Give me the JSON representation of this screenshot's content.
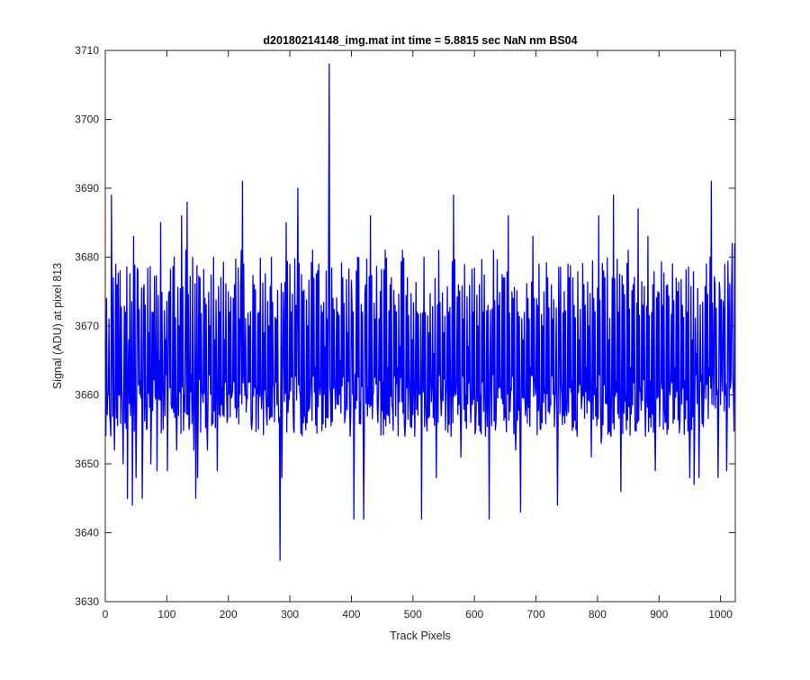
{
  "chart_data": {
    "type": "line",
    "title": "d20180214148_img.mat int time = 5.8815 sec  NaN nm BS04",
    "xlabel": "Track Pixels",
    "ylabel": "Signal (ADU) at pixel 813",
    "xlim": [
      0,
      1024
    ],
    "ylim": [
      3630,
      3710
    ],
    "xticks": [
      0,
      100,
      200,
      300,
      400,
      500,
      600,
      700,
      800,
      900,
      1000
    ],
    "yticks": [
      3630,
      3640,
      3650,
      3660,
      3670,
      3680,
      3690,
      3700,
      3710
    ],
    "grid": false,
    "legend": "none",
    "series": [
      {
        "color": "#0000ff",
        "mean": 3667,
        "points": [
          [
            1,
            3654
          ],
          [
            2,
            3674
          ],
          [
            4,
            3660
          ],
          [
            6,
            3671
          ],
          [
            8,
            3656
          ],
          [
            10,
            3689
          ],
          [
            11,
            3668
          ],
          [
            13,
            3677
          ],
          [
            15,
            3652
          ],
          [
            19,
            3676
          ],
          [
            22,
            3660
          ],
          [
            24,
            3678
          ],
          [
            27,
            3661
          ],
          [
            29,
            3650
          ],
          [
            33,
            3672
          ],
          [
            36,
            3645
          ],
          [
            38,
            3668
          ],
          [
            41,
            3657
          ],
          [
            44,
            3644
          ],
          [
            46,
            3683
          ],
          [
            50,
            3648
          ],
          [
            53,
            3678
          ],
          [
            57,
            3662
          ],
          [
            60,
            3645
          ],
          [
            63,
            3676
          ],
          [
            67,
            3655
          ],
          [
            71,
            3669
          ],
          [
            74,
            3650
          ],
          [
            78,
            3672
          ],
          [
            81,
            3660
          ],
          [
            84,
            3649
          ],
          [
            88,
            3665
          ],
          [
            90,
            3685
          ],
          [
            94,
            3655
          ],
          [
            98,
            3668
          ],
          [
            101,
            3649
          ],
          [
            104,
            3675
          ],
          [
            108,
            3658
          ],
          [
            112,
            3680
          ],
          [
            116,
            3652
          ],
          [
            120,
            3670
          ],
          [
            124,
            3686
          ],
          [
            128,
            3660
          ],
          [
            131,
            3681
          ],
          [
            133,
            3688
          ],
          [
            136,
            3655
          ],
          [
            140,
            3663
          ],
          [
            144,
            3652
          ],
          [
            147,
            3645
          ],
          [
            150,
            3648
          ],
          [
            154,
            3677
          ],
          [
            158,
            3660
          ],
          [
            162,
            3674
          ],
          [
            166,
            3652
          ],
          [
            170,
            3670
          ],
          [
            174,
            3657
          ],
          [
            178,
            3668
          ],
          [
            182,
            3649
          ],
          [
            186,
            3672
          ],
          [
            190,
            3661
          ],
          [
            194,
            3668
          ],
          [
            198,
            3656
          ],
          [
            202,
            3672
          ],
          [
            206,
            3660
          ],
          [
            210,
            3676
          ],
          [
            214,
            3658
          ],
          [
            218,
            3671
          ],
          [
            221,
            3681
          ],
          [
            223,
            3691
          ],
          [
            226,
            3663
          ],
          [
            230,
            3660
          ],
          [
            234,
            3670
          ],
          [
            238,
            3655
          ],
          [
            242,
            3676
          ],
          [
            246,
            3661
          ],
          [
            250,
            3672
          ],
          [
            254,
            3658
          ],
          [
            258,
            3669
          ],
          [
            262,
            3657
          ],
          [
            266,
            3670
          ],
          [
            270,
            3680
          ],
          [
            274,
            3661
          ],
          [
            278,
            3671
          ],
          [
            282,
            3656
          ],
          [
            284,
            3636
          ],
          [
            287,
            3648
          ],
          [
            290,
            3669
          ],
          [
            294,
            3685
          ],
          [
            298,
            3660
          ],
          [
            302,
            3672
          ],
          [
            306,
            3655
          ],
          [
            310,
            3673
          ],
          [
            313,
            3690
          ],
          [
            317,
            3660
          ],
          [
            321,
            3675
          ],
          [
            325,
            3657
          ],
          [
            329,
            3670
          ],
          [
            333,
            3660
          ],
          [
            337,
            3681
          ],
          [
            341,
            3664
          ],
          [
            345,
            3678
          ],
          [
            349,
            3660
          ],
          [
            353,
            3672
          ],
          [
            357,
            3667
          ],
          [
            361,
            3671
          ],
          [
            363,
            3683
          ],
          [
            364,
            3708
          ],
          [
            366,
            3660
          ],
          [
            370,
            3674
          ],
          [
            374,
            3658
          ],
          [
            378,
            3672
          ],
          [
            382,
            3665
          ],
          [
            386,
            3677
          ],
          [
            390,
            3657
          ],
          [
            394,
            3669
          ],
          [
            398,
            3654
          ],
          [
            401,
            3673
          ],
          [
            404,
            3642
          ],
          [
            406,
            3663
          ],
          [
            410,
            3680
          ],
          [
            414,
            3659
          ],
          [
            418,
            3672
          ],
          [
            420,
            3642
          ],
          [
            423,
            3676
          ],
          [
            427,
            3661
          ],
          [
            431,
            3686
          ],
          [
            435,
            3660
          ],
          [
            439,
            3671
          ],
          [
            443,
            3656
          ],
          [
            447,
            3675
          ],
          [
            451,
            3662
          ],
          [
            455,
            3681
          ],
          [
            459,
            3664
          ],
          [
            463,
            3676
          ],
          [
            467,
            3658
          ],
          [
            471,
            3673
          ],
          [
            475,
            3664
          ],
          [
            479,
            3667
          ],
          [
            483,
            3681
          ],
          [
            487,
            3654
          ],
          [
            491,
            3677
          ],
          [
            495,
            3659
          ],
          [
            499,
            3668
          ],
          [
            503,
            3654
          ],
          [
            507,
            3672
          ],
          [
            511,
            3660
          ],
          [
            514,
            3642
          ],
          [
            518,
            3680
          ],
          [
            522,
            3656
          ],
          [
            526,
            3669
          ],
          [
            530,
            3659
          ],
          [
            534,
            3666
          ],
          [
            538,
            3648
          ],
          [
            542,
            3681
          ],
          [
            546,
            3657
          ],
          [
            550,
            3669
          ],
          [
            554,
            3659
          ],
          [
            558,
            3672
          ],
          [
            562,
            3654
          ],
          [
            566,
            3689
          ],
          [
            570,
            3660
          ],
          [
            574,
            3676
          ],
          [
            578,
            3651
          ],
          [
            582,
            3671
          ],
          [
            586,
            3660
          ],
          [
            590,
            3667
          ],
          [
            594,
            3656
          ],
          [
            598,
            3672
          ],
          [
            602,
            3655
          ],
          [
            606,
            3670
          ],
          [
            610,
            3660
          ],
          [
            614,
            3672
          ],
          [
            618,
            3654
          ],
          [
            622,
            3673
          ],
          [
            624,
            3642
          ],
          [
            627,
            3661
          ],
          [
            631,
            3681
          ],
          [
            635,
            3656
          ],
          [
            639,
            3673
          ],
          [
            643,
            3662
          ],
          [
            647,
            3677
          ],
          [
            651,
            3658
          ],
          [
            655,
            3686
          ],
          [
            659,
            3661
          ],
          [
            663,
            3674
          ],
          [
            667,
            3652
          ],
          [
            671,
            3672
          ],
          [
            675,
            3643
          ],
          [
            679,
            3668
          ],
          [
            683,
            3657
          ],
          [
            687,
            3674
          ],
          [
            691,
            3664
          ],
          [
            695,
            3683
          ],
          [
            699,
            3660
          ],
          [
            703,
            3673
          ],
          [
            707,
            3655
          ],
          [
            711,
            3670
          ],
          [
            715,
            3661
          ],
          [
            719,
            3677
          ],
          [
            723,
            3659
          ],
          [
            727,
            3671
          ],
          [
            731,
            3659
          ],
          [
            735,
            3644
          ],
          [
            738,
            3670
          ],
          [
            742,
            3660
          ],
          [
            746,
            3675
          ],
          [
            750,
            3657
          ],
          [
            754,
            3677
          ],
          [
            758,
            3662
          ],
          [
            762,
            3673
          ],
          [
            766,
            3656
          ],
          [
            770,
            3668
          ],
          [
            774,
            3658
          ],
          [
            778,
            3676
          ],
          [
            782,
            3664
          ],
          [
            786,
            3670
          ],
          [
            790,
            3651
          ],
          [
            794,
            3674
          ],
          [
            798,
            3661
          ],
          [
            802,
            3686
          ],
          [
            806,
            3653
          ],
          [
            810,
            3678
          ],
          [
            814,
            3660
          ],
          [
            818,
            3668
          ],
          [
            822,
            3654
          ],
          [
            826,
            3689
          ],
          [
            830,
            3662
          ],
          [
            834,
            3672
          ],
          [
            838,
            3646
          ],
          [
            842,
            3676
          ],
          [
            846,
            3660
          ],
          [
            850,
            3681
          ],
          [
            854,
            3664
          ],
          [
            858,
            3676
          ],
          [
            862,
            3656
          ],
          [
            866,
            3687
          ],
          [
            870,
            3661
          ],
          [
            874,
            3673
          ],
          [
            878,
            3654
          ],
          [
            882,
            3683
          ],
          [
            886,
            3662
          ],
          [
            890,
            3676
          ],
          [
            894,
            3649
          ],
          [
            898,
            3675
          ],
          [
            902,
            3661
          ],
          [
            906,
            3673
          ],
          [
            910,
            3656
          ],
          [
            914,
            3676
          ],
          [
            918,
            3660
          ],
          [
            922,
            3679
          ],
          [
            926,
            3664
          ],
          [
            930,
            3675
          ],
          [
            934,
            3656
          ],
          [
            938,
            3673
          ],
          [
            942,
            3662
          ],
          [
            946,
            3672
          ],
          [
            950,
            3648
          ],
          [
            954,
            3668
          ],
          [
            957,
            3647
          ],
          [
            961,
            3666
          ],
          [
            965,
            3648
          ],
          [
            969,
            3663
          ],
          [
            973,
            3660
          ],
          [
            977,
            3679
          ],
          [
            981,
            3664
          ],
          [
            983,
            3680
          ],
          [
            985,
            3691
          ],
          [
            988,
            3665
          ],
          [
            991,
            3676
          ],
          [
            994,
            3660
          ],
          [
            996,
            3648
          ],
          [
            999,
            3675
          ],
          [
            1002,
            3663
          ],
          [
            1005,
            3672
          ],
          [
            1008,
            3660
          ],
          [
            1010,
            3649
          ],
          [
            1013,
            3671
          ],
          [
            1016,
            3661
          ],
          [
            1019,
            3682
          ],
          [
            1021,
            3660
          ],
          [
            1023,
            3682
          ]
        ]
      }
    ]
  }
}
